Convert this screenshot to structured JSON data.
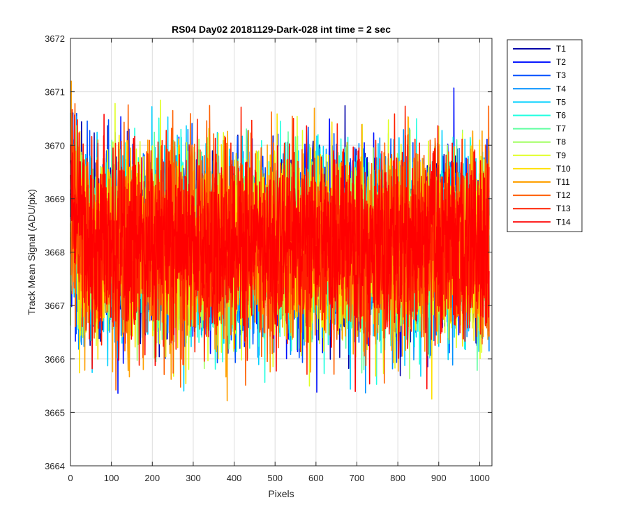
{
  "chart_data": {
    "type": "line",
    "title": "RS04 Day02 20181129-Dark-028 int time = 2 sec",
    "xlabel": "Pixels",
    "ylabel": "Track Mean Signal (ADU/pix)",
    "xlim": [
      0,
      1030
    ],
    "ylim": [
      3664,
      3672
    ],
    "x_ticks": [
      0,
      100,
      200,
      300,
      400,
      500,
      600,
      700,
      800,
      900,
      1000
    ],
    "y_ticks": [
      3664,
      3665,
      3666,
      3667,
      3668,
      3669,
      3670,
      3671,
      3672
    ],
    "grid": true,
    "legend_position": "outside-top-right",
    "n_points_per_series": 1024,
    "series": [
      {
        "name": "T1",
        "color": "#0000a8",
        "mean": 3668.15,
        "noise_range": [
          3664.6,
          3671.2
        ]
      },
      {
        "name": "T2",
        "color": "#0010ff",
        "mean": 3668.1,
        "noise_range": [
          3664.7,
          3671.1
        ]
      },
      {
        "name": "T3",
        "color": "#0050ff",
        "mean": 3668.1,
        "noise_range": [
          3664.8,
          3671.0
        ]
      },
      {
        "name": "T4",
        "color": "#0090ff",
        "mean": 3668.1,
        "noise_range": [
          3664.8,
          3671.0
        ]
      },
      {
        "name": "T5",
        "color": "#00d0ff",
        "mean": 3668.1,
        "noise_range": [
          3664.3,
          3671.0
        ]
      },
      {
        "name": "T6",
        "color": "#20ffe0",
        "mean": 3668.1,
        "noise_range": [
          3664.4,
          3671.2
        ]
      },
      {
        "name": "T7",
        "color": "#60ffa0",
        "mean": 3668.1,
        "noise_range": [
          3664.8,
          3671.0
        ]
      },
      {
        "name": "T8",
        "color": "#a0ff60",
        "mean": 3668.1,
        "noise_range": [
          3664.9,
          3671.0
        ]
      },
      {
        "name": "T9",
        "color": "#e0ff20",
        "mean": 3668.1,
        "noise_range": [
          3664.8,
          3671.5
        ]
      },
      {
        "name": "T10",
        "color": "#ffe000",
        "mean": 3668.1,
        "noise_range": [
          3664.8,
          3671.2
        ]
      },
      {
        "name": "T11",
        "color": "#ffa000",
        "mean": 3668.1,
        "noise_range": [
          3664.8,
          3671.2
        ]
      },
      {
        "name": "T12",
        "color": "#ff6000",
        "mean": 3668.15,
        "noise_range": [
          3664.6,
          3671.6
        ]
      },
      {
        "name": "T13",
        "color": "#ff2000",
        "mean": 3668.15,
        "noise_range": [
          3664.8,
          3671.7
        ]
      },
      {
        "name": "T14",
        "color": "#ff0000",
        "mean": 3668.2,
        "noise_range": [
          3665.0,
          3671.3
        ]
      }
    ]
  }
}
